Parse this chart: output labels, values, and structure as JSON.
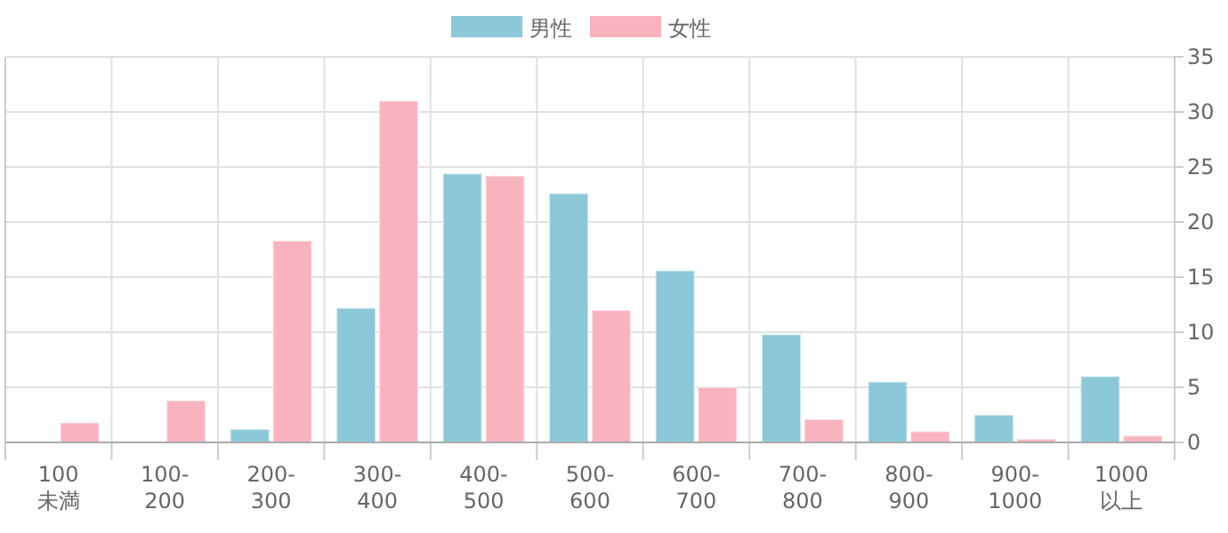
{
  "chart_data": {
    "type": "bar",
    "categories": [
      "100\n未満",
      "100-\n200",
      "200-\n300",
      "300-\n400",
      "400-\n500",
      "500-\n600",
      "600-\n700",
      "700-\n800",
      "800-\n900",
      "900-\n1000",
      "1000\n以上"
    ],
    "series": [
      {
        "name": "男性",
        "color": "#8bc8d8",
        "values": [
          0,
          null,
          1.2,
          12.2,
          24.4,
          22.6,
          15.6,
          9.8,
          5.5,
          2.5,
          6.0
        ]
      },
      {
        "name": "女性",
        "color": "#f9b3be",
        "values": [
          1.8,
          3.8,
          18.3,
          31,
          24.2,
          12,
          5,
          2.1,
          1.0,
          0.3,
          0.6
        ]
      }
    ],
    "ylim": [
      0,
      35
    ],
    "yticks": [
      0,
      5,
      10,
      15,
      20,
      25,
      30,
      35
    ],
    "grid": true,
    "legend": "top"
  }
}
